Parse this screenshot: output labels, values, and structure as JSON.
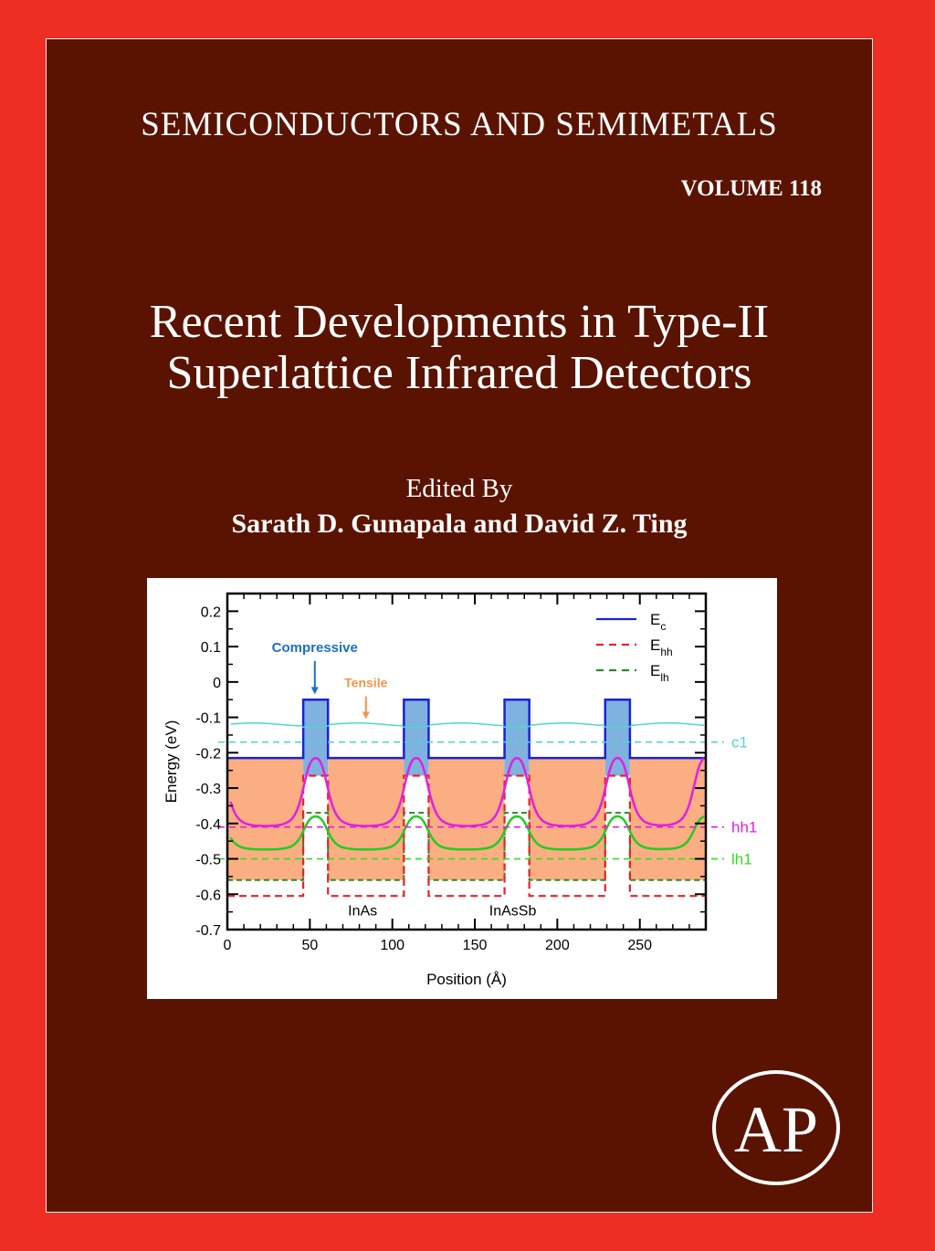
{
  "cover": {
    "series": "SEMICONDUCTORS AND SEMIMETALS",
    "volume": "VOLUME 118",
    "title_line1": "Recent Developments in Type-II",
    "title_line2": "Superlattice Infrared Detectors",
    "edited_by": "Edited By",
    "editors": "Sarath D. Gunapala and David Z. Ting",
    "publisher_logo": "AP",
    "colors": {
      "frame": "#ee2e24",
      "panel": "#5a1300"
    }
  },
  "chart_data": {
    "type": "line",
    "xlabel": "Position (Å)",
    "ylabel": "Energy (eV)",
    "xlim": [
      0,
      290
    ],
    "ylim": [
      -0.7,
      0.25
    ],
    "xticks": [
      0,
      50,
      100,
      150,
      200,
      250
    ],
    "yticks": [
      0.2,
      0.1,
      0,
      -0.1,
      -0.2,
      -0.3,
      -0.4,
      -0.5,
      -0.6,
      -0.7
    ],
    "ytick_labels": [
      "0.2",
      "0.1",
      "0",
      "-0.1",
      "-0.2",
      "-0.3",
      "-0.4",
      "-0.5",
      "-0.6",
      "-0.7"
    ],
    "inas_layers": [
      [
        46,
        61
      ],
      [
        107,
        122
      ],
      [
        168,
        183
      ],
      [
        229,
        244
      ]
    ],
    "layer_labels": [
      "InAs",
      "InAsSb"
    ],
    "band_edges": {
      "Ec": {
        "InAs": -0.05,
        "InAsSb": -0.215,
        "color": "#1a22d8"
      },
      "Ehh": {
        "InAs": -0.265,
        "InAsSb": -0.605,
        "color": "#e8222a"
      },
      "Elh": {
        "InAs": -0.37,
        "InAsSb": -0.56,
        "color": "#2a8a2a"
      }
    },
    "levels": [
      {
        "name": "c1",
        "value": -0.17,
        "color": "#4fd6cf"
      },
      {
        "name": "hh1",
        "value": -0.41,
        "color": "#e020e0"
      },
      {
        "name": "lh1",
        "value": -0.5,
        "color": "#33dd22"
      }
    ],
    "wavefunctions": [
      {
        "level": "c1",
        "baseline": -0.12,
        "peak": -0.12,
        "color": "#4fd6cf"
      },
      {
        "level": "hh1",
        "baseline": -0.41,
        "peak": -0.215,
        "color": "#e020e0"
      },
      {
        "level": "lh1",
        "baseline": -0.475,
        "peak": -0.38,
        "color": "#22cc22"
      }
    ],
    "legend": {
      "position": "top-right",
      "entries": [
        {
          "label": "E",
          "sub": "c",
          "style": "solid",
          "color": "#1a22d8"
        },
        {
          "label": "E",
          "sub": "hh",
          "style": "dashed",
          "color": "#e8222a"
        },
        {
          "label": "E",
          "sub": "lh",
          "style": "dashed",
          "color": "#2a8a2a"
        }
      ]
    },
    "annotations": [
      {
        "text": "Compressive",
        "color": "#1a6fc4",
        "x": 53,
        "y": 0.085
      },
      {
        "text": "Tensile",
        "color": "#f4944a",
        "x": 84,
        "y": -0.015
      }
    ]
  }
}
